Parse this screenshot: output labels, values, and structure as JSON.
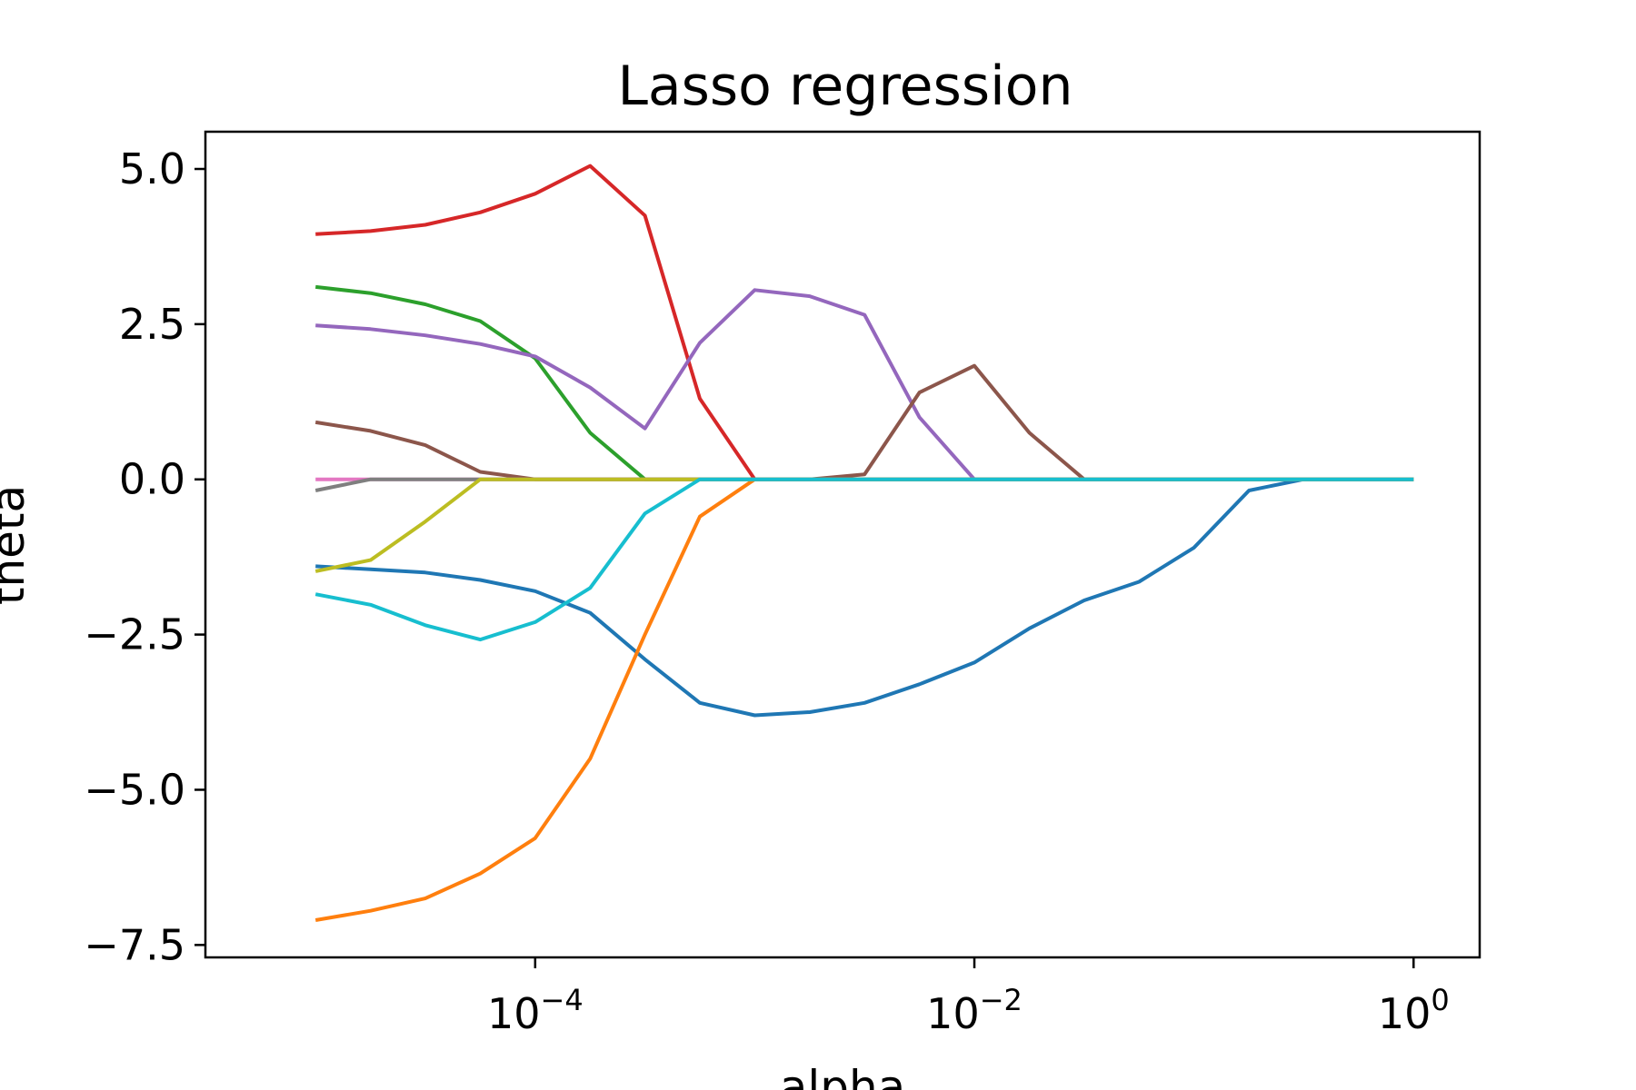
{
  "chart_data": {
    "type": "line",
    "title": "Lasso regression",
    "xlabel": "alpha",
    "ylabel": "theta",
    "xscale": "log",
    "xlim": [
      3.15e-06,
      2.0
    ],
    "ylim": [
      -7.7,
      5.6
    ],
    "grid": false,
    "legend": "none",
    "x_ticks": [
      {
        "value": 0.0001,
        "base": "10",
        "exp": "−4"
      },
      {
        "value": 0.01,
        "base": "10",
        "exp": "−2"
      },
      {
        "value": 1,
        "base": "10",
        "exp": "0"
      }
    ],
    "y_ticks": [
      {
        "value": 5.0,
        "label": "5.0"
      },
      {
        "value": 2.5,
        "label": "2.5"
      },
      {
        "value": 0.0,
        "label": "0.0"
      },
      {
        "value": -2.5,
        "label": "−2.5"
      },
      {
        "value": -5.0,
        "label": "−5.0"
      },
      {
        "value": -7.5,
        "label": "−7.5"
      }
    ],
    "x": [
      1e-05,
      1.78e-05,
      3.16e-05,
      5.62e-05,
      0.0001,
      0.000178,
      0.000316,
      0.000562,
      0.001,
      0.00178,
      0.00316,
      0.00562,
      0.01,
      0.0178,
      0.0316,
      0.0562,
      0.1,
      0.178,
      0.316,
      0.562,
      1.0
    ],
    "series": [
      {
        "color": "#1f77b4",
        "values": [
          -1.4,
          -1.45,
          -1.5,
          -1.62,
          -1.8,
          -2.15,
          -2.9,
          -3.6,
          -3.8,
          -3.75,
          -3.6,
          -3.3,
          -2.95,
          -2.4,
          -1.95,
          -1.65,
          -1.1,
          -0.18,
          0,
          0,
          0
        ]
      },
      {
        "color": "#ff7f0e",
        "values": [
          -7.1,
          -6.95,
          -6.75,
          -6.35,
          -5.78,
          -4.5,
          -2.5,
          -0.6,
          0,
          0,
          0,
          0,
          0,
          0,
          0,
          0,
          0,
          0,
          0,
          0,
          0
        ]
      },
      {
        "color": "#2ca02c",
        "values": [
          3.1,
          3.0,
          2.82,
          2.55,
          1.95,
          0.75,
          0,
          0,
          0,
          0,
          0,
          0,
          0,
          0,
          0,
          0,
          0,
          0,
          0,
          0,
          0
        ]
      },
      {
        "color": "#d62728",
        "values": [
          3.95,
          4.0,
          4.1,
          4.3,
          4.6,
          5.05,
          4.25,
          1.3,
          0,
          0,
          0,
          0,
          0,
          0,
          0,
          0,
          0,
          0,
          0,
          0,
          0
        ]
      },
      {
        "color": "#9467bd",
        "values": [
          2.48,
          2.42,
          2.32,
          2.18,
          1.98,
          1.48,
          0.82,
          2.2,
          3.05,
          2.95,
          2.65,
          1.0,
          0,
          0,
          0,
          0,
          0,
          0,
          0,
          0,
          0
        ]
      },
      {
        "color": "#8c564b",
        "values": [
          0.92,
          0.78,
          0.55,
          0.12,
          0,
          0,
          0,
          0,
          0,
          0,
          0.08,
          1.4,
          1.83,
          0.75,
          0,
          0,
          0,
          0,
          0,
          0,
          0
        ]
      },
      {
        "color": "#e377c2",
        "values": [
          0,
          0,
          0,
          0,
          0,
          0,
          0,
          0,
          0,
          0,
          0,
          0,
          0,
          0,
          0,
          0,
          0,
          0,
          0,
          0,
          0
        ]
      },
      {
        "color": "#7f7f7f",
        "values": [
          -0.18,
          0,
          0,
          0,
          0,
          0,
          0,
          0,
          0,
          0,
          0,
          0,
          0,
          0,
          0,
          0,
          0,
          0,
          0,
          0,
          0
        ]
      },
      {
        "color": "#bcbd22",
        "values": [
          -1.48,
          -1.3,
          -0.68,
          0,
          0,
          0,
          0,
          0,
          0,
          0,
          0,
          0,
          0,
          0,
          0,
          0,
          0,
          0,
          0,
          0,
          0
        ]
      },
      {
        "color": "#17becf",
        "values": [
          -1.85,
          -2.02,
          -2.35,
          -2.58,
          -2.3,
          -1.75,
          -0.55,
          0,
          0,
          0,
          0,
          0,
          0,
          0,
          0,
          0,
          0,
          0,
          0,
          0,
          0
        ]
      }
    ]
  }
}
